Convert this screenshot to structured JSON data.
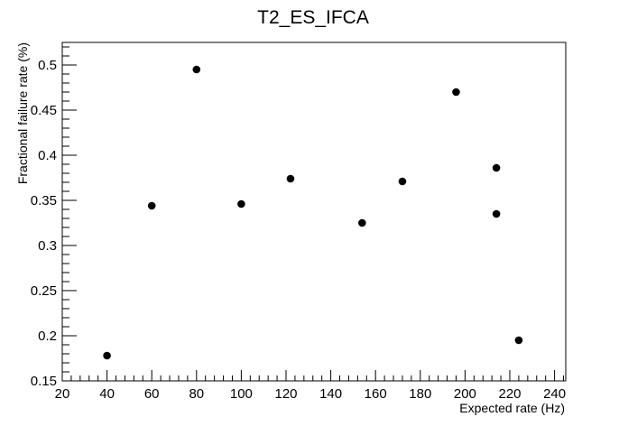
{
  "chart_data": {
    "type": "scatter",
    "title": "T2_ES_IFCA",
    "xlabel": "Expected rate (Hz)",
    "ylabel": "Fractional failure rate (%)",
    "xlim": [
      20,
      245
    ],
    "ylim": [
      0.15,
      0.525
    ],
    "x_ticks": [
      "20",
      "40",
      "60",
      "80",
      "100",
      "120",
      "140",
      "160",
      "180",
      "200",
      "220",
      "240"
    ],
    "y_ticks": [
      "0.15",
      "0.2",
      "0.25",
      "0.3",
      "0.35",
      "0.4",
      "0.45",
      "0.5"
    ],
    "grid": false,
    "marker_color": "#000000",
    "points": [
      {
        "x": 40,
        "y": 0.178
      },
      {
        "x": 60,
        "y": 0.344
      },
      {
        "x": 80,
        "y": 0.495
      },
      {
        "x": 100,
        "y": 0.346
      },
      {
        "x": 122,
        "y": 0.374
      },
      {
        "x": 154,
        "y": 0.325
      },
      {
        "x": 172,
        "y": 0.371
      },
      {
        "x": 196,
        "y": 0.47
      },
      {
        "x": 214,
        "y": 0.386
      },
      {
        "x": 214,
        "y": 0.335
      },
      {
        "x": 224,
        "y": 0.195
      }
    ]
  }
}
